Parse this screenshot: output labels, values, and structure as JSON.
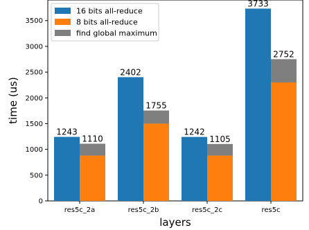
{
  "chart_data": {
    "type": "bar",
    "stacked_overlay": true,
    "categories": [
      "res5c_2a",
      "res5c_2b",
      "res5c_2c",
      "res5c"
    ],
    "series": [
      {
        "name": "16 bits all-reduce",
        "color": "#1f77b4",
        "values": [
          1243,
          2402,
          1242,
          3733
        ],
        "group": "left"
      },
      {
        "name": "8 bits all-reduce",
        "color": "#ff7f0e",
        "values": [
          880,
          1500,
          880,
          2300
        ],
        "group": "right"
      },
      {
        "name": "find global maximum",
        "color": "#7f7f7f",
        "values": [
          230,
          255,
          225,
          452
        ],
        "group": "right",
        "stacked_on": "8 bits all-reduce"
      }
    ],
    "data_labels": {
      "left": [
        "1243",
        "2402",
        "1242",
        "3733"
      ],
      "right": [
        "1110",
        "1755",
        "1105",
        "2752"
      ]
    },
    "xlabel": "layers",
    "ylabel": "time (us)",
    "ylim": [
      0,
      3900
    ],
    "yticks": [
      0,
      500,
      1000,
      1500,
      2000,
      2500,
      3000,
      3500
    ],
    "legend_position": "top-left",
    "grid": false
  }
}
